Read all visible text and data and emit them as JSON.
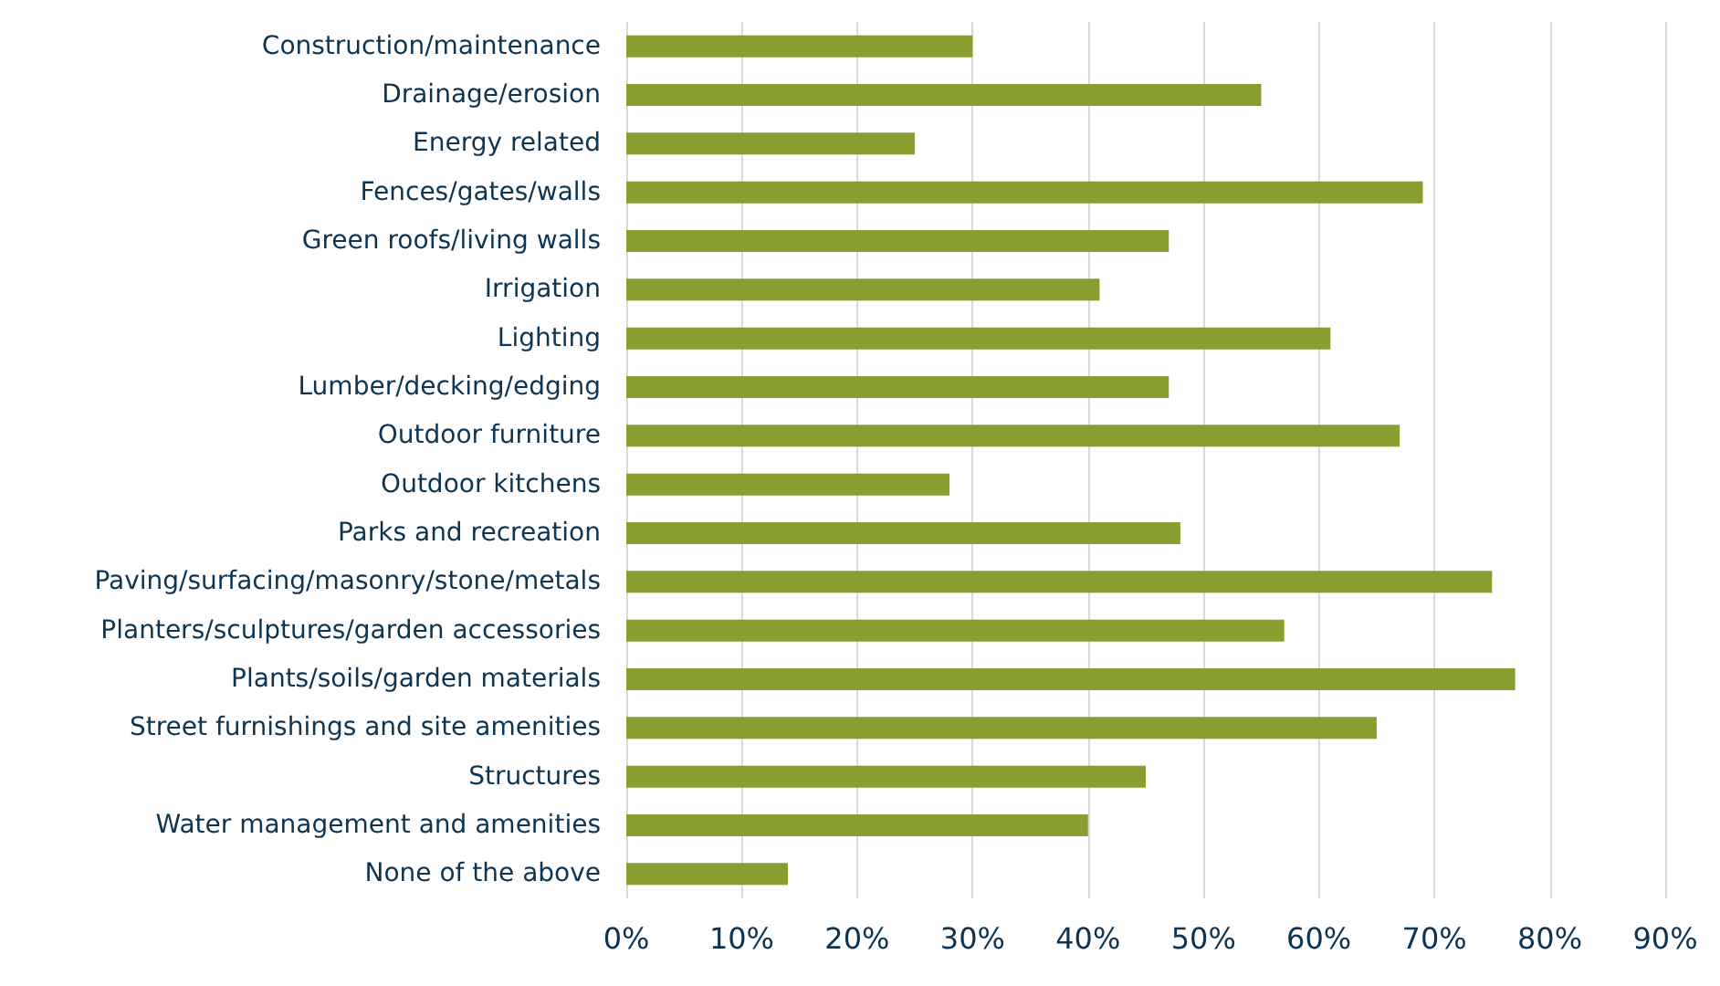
{
  "chart_data": {
    "type": "bar",
    "orientation": "horizontal",
    "categories": [
      "Construction/maintenance",
      "Drainage/erosion",
      "Energy related",
      "Fences/gates/walls",
      "Green roofs/living walls",
      "Irrigation",
      "Lighting",
      "Lumber/decking/edging",
      "Outdoor furniture",
      "Outdoor kitchens",
      "Parks and recreation",
      "Paving/surfacing/masonry/stone/metals",
      "Planters/sculptures/garden accessories",
      "Plants/soils/garden materials",
      "Street furnishings and site amenities",
      "Structures",
      "Water management and amenities",
      "None of the above"
    ],
    "values": [
      30,
      55,
      25,
      69,
      47,
      41,
      61,
      47,
      67,
      28,
      48,
      75,
      57,
      77,
      65,
      45,
      40,
      14
    ],
    "color": "#889e2e",
    "xlim": [
      0,
      90
    ],
    "xticks": [
      {
        "value": 0,
        "label": "0%"
      },
      {
        "value": 10,
        "label": "10%"
      },
      {
        "value": 20,
        "label": "20%"
      },
      {
        "value": 30,
        "label": "30%"
      },
      {
        "value": 40,
        "label": "40%"
      },
      {
        "value": 50,
        "label": "50%"
      },
      {
        "value": 60,
        "label": "60%"
      },
      {
        "value": 70,
        "label": "70%"
      },
      {
        "value": 80,
        "label": "80%"
      },
      {
        "value": 90,
        "label": "90%"
      }
    ],
    "grid": "x"
  }
}
